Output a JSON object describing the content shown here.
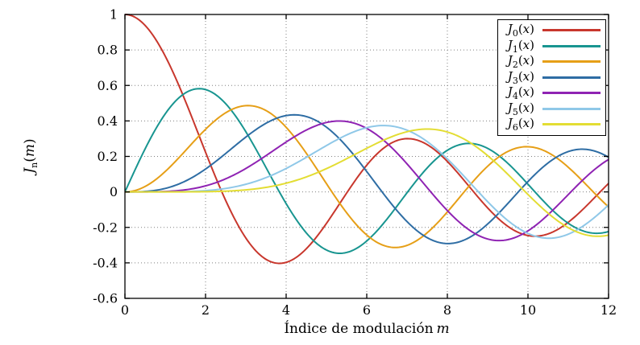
{
  "chart_data": {
    "type": "line",
    "title": "",
    "xlabel": {
      "text": "Índice de modulación",
      "var": "m"
    },
    "ylabel": {
      "base": "J",
      "sub": "n",
      "open": "(",
      "arg": "m",
      "close": ")"
    },
    "x_range": [
      0,
      12
    ],
    "y_range": [
      -0.6,
      1
    ],
    "x_ticks": [
      0,
      2,
      4,
      6,
      8,
      10,
      12
    ],
    "y_ticks": [
      -0.6,
      -0.4,
      -0.2,
      0,
      0.2,
      0.4,
      0.6,
      0.8,
      1
    ],
    "grid": "dotted",
    "grid_color": "#808080",
    "legend_position": "top-right",
    "sampling_step": 0.05,
    "series": [
      {
        "label": "J0(x)",
        "bessel_order": 0,
        "color": "#c8372d"
      },
      {
        "label": "J1(x)",
        "bessel_order": 1,
        "color": "#189590"
      },
      {
        "label": "J2(x)",
        "bessel_order": 2,
        "color": "#e69f17"
      },
      {
        "label": "J3(x)",
        "bessel_order": 3,
        "color": "#2e6da4"
      },
      {
        "label": "J4(x)",
        "bessel_order": 4,
        "color": "#8f23b3"
      },
      {
        "label": "J5(x)",
        "bessel_order": 5,
        "color": "#8fc8e8"
      },
      {
        "label": "J6(x)",
        "bessel_order": 6,
        "color": "#e3dd33"
      }
    ],
    "reference_points": {
      "x": [
        0,
        1,
        2,
        3,
        4,
        5,
        6,
        7,
        8,
        9,
        10,
        11,
        12
      ],
      "J0": [
        1.0,
        0.7652,
        0.2239,
        -0.2601,
        -0.3971,
        -0.1776,
        0.1506,
        0.3001,
        0.1717,
        -0.0903,
        -0.2459,
        -0.1712,
        0.0477
      ],
      "J1": [
        0.0,
        0.4401,
        0.5767,
        0.3391,
        -0.066,
        -0.3276,
        -0.2767,
        -0.0047,
        0.2346,
        0.2453,
        0.0435,
        -0.1768,
        -0.2234
      ],
      "J2": [
        0.0,
        0.1149,
        0.3528,
        0.4861,
        0.3641,
        0.0466,
        -0.2429,
        -0.3014,
        -0.113,
        0.1448,
        0.2546,
        0.139,
        -0.0849
      ],
      "J3": [
        0.0,
        0.0196,
        0.1289,
        0.3091,
        0.4302,
        0.3648,
        0.1148,
        -0.1676,
        -0.2911,
        -0.1809,
        0.0584,
        0.2273,
        0.1951
      ],
      "J4": [
        0.0,
        0.0025,
        0.034,
        0.132,
        0.2811,
        0.3912,
        0.3576,
        0.1578,
        -0.1054,
        -0.2655,
        -0.2196,
        -0.015,
        0.1825
      ],
      "J5": [
        0.0,
        0.0002,
        0.007,
        0.043,
        0.1321,
        0.2611,
        0.3621,
        0.3479,
        0.1858,
        -0.055,
        -0.2341,
        -0.2383,
        -0.0735
      ],
      "J6": [
        0.0,
        0.0,
        0.0012,
        0.0114,
        0.0491,
        0.131,
        0.2458,
        0.3392,
        0.3376,
        0.2043,
        -0.0145,
        -0.2016,
        -0.2437
      ]
    }
  }
}
